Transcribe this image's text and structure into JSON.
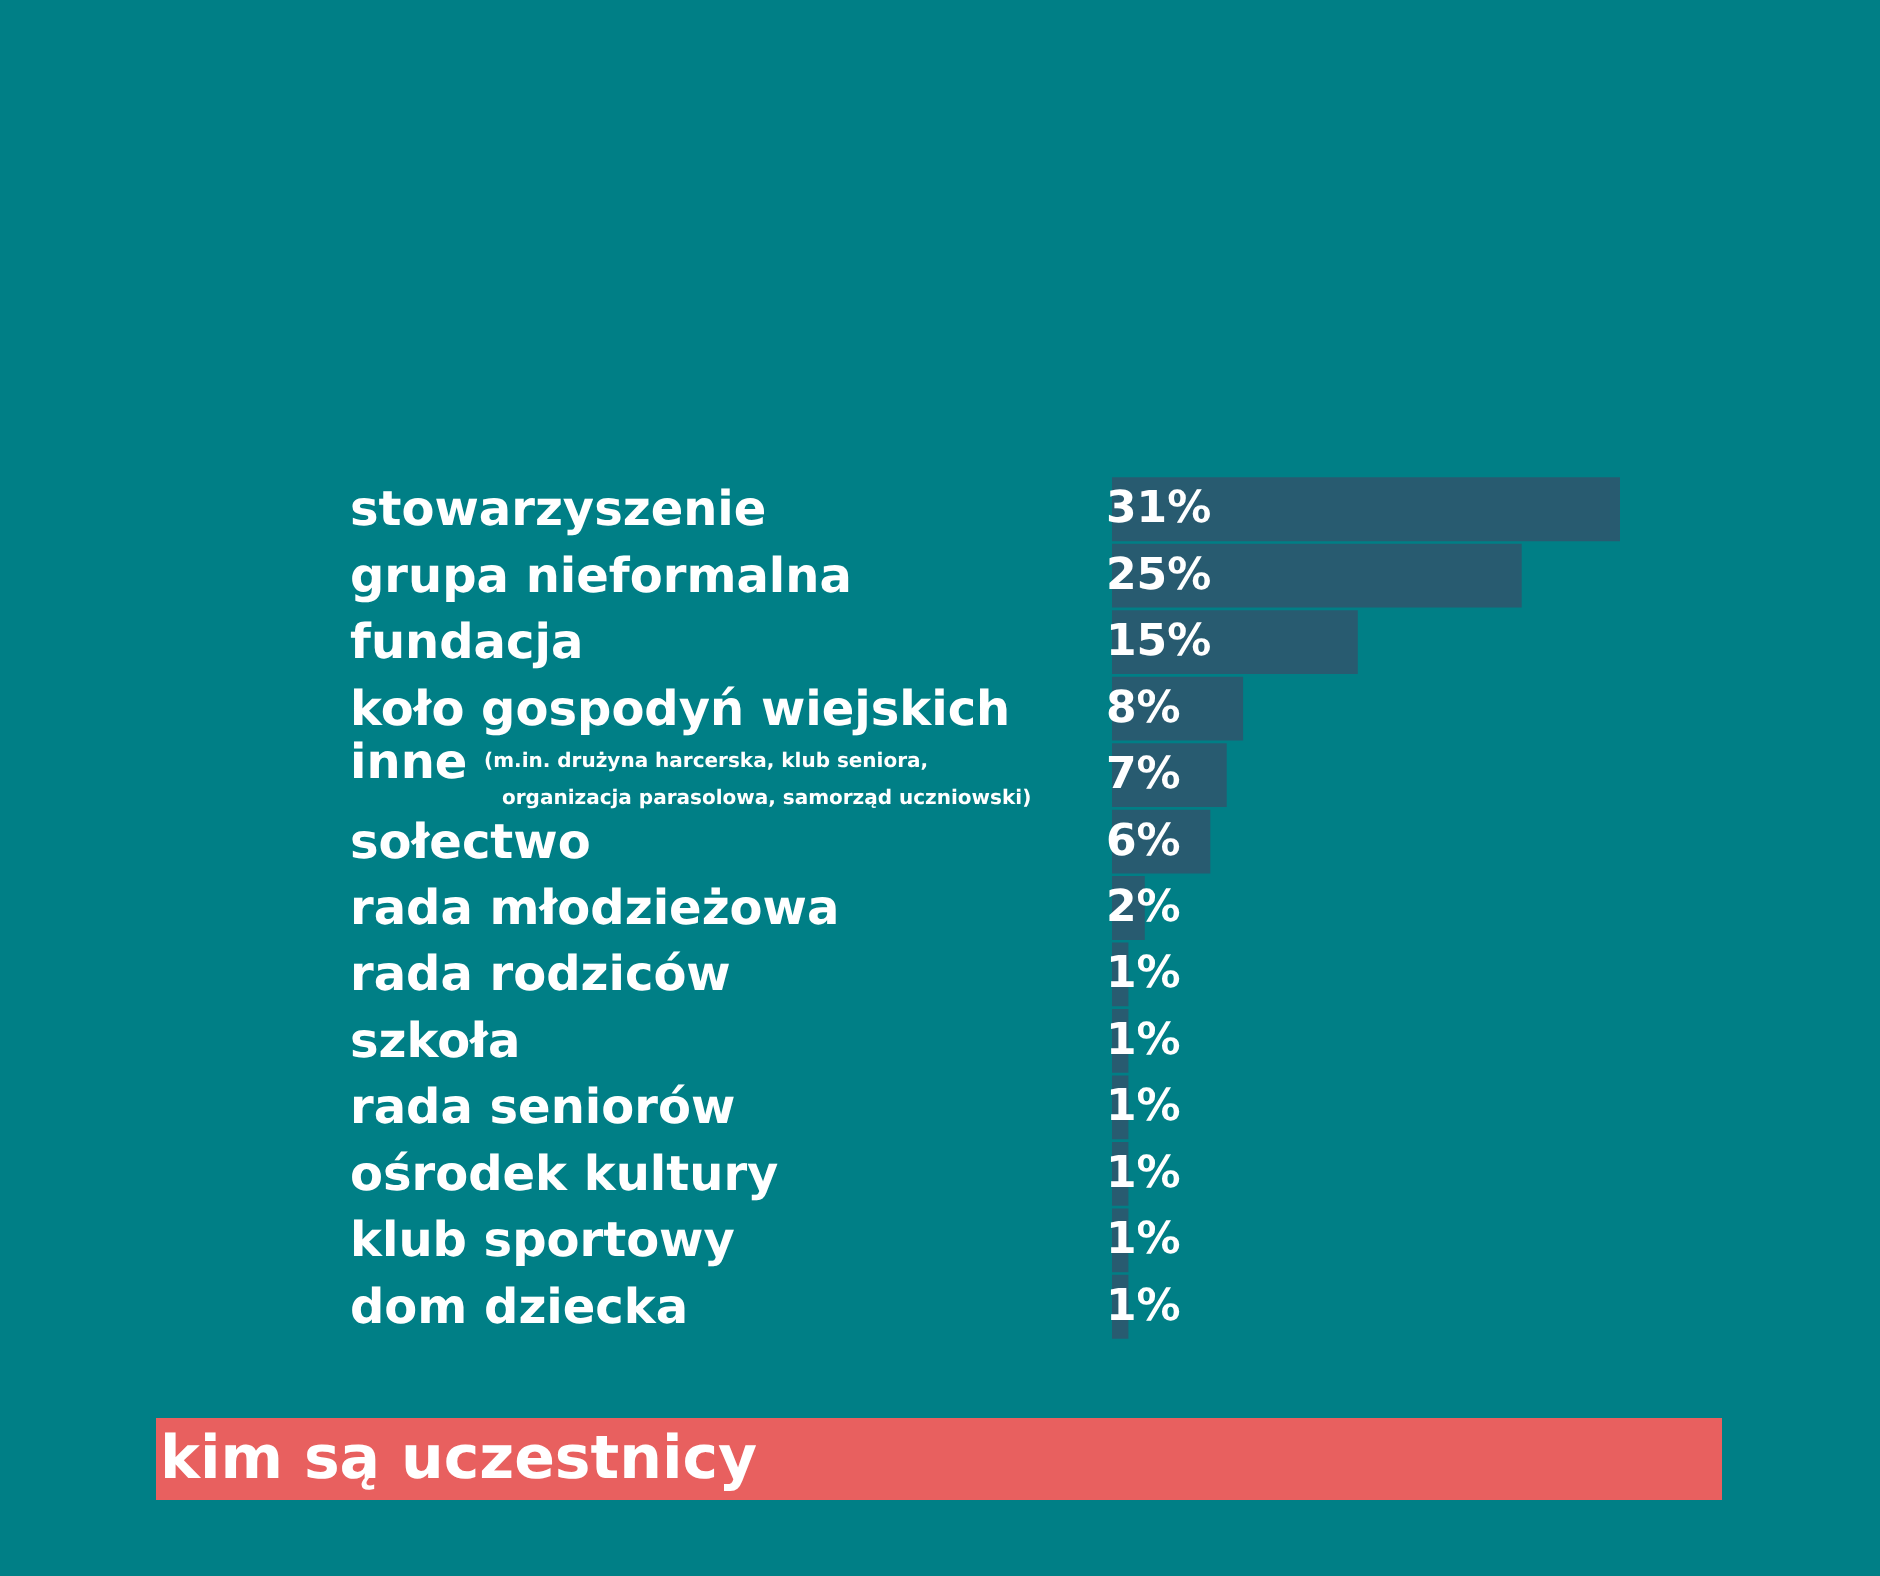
{
  "chart_data": {
    "type": "bar",
    "orientation": "horizontal",
    "title": "kim są uczestnicy",
    "categories": [
      "stowarzyszenie",
      "grupa nieformalna",
      "fundacja",
      "koło gospodyń wiejskich",
      "inne (m.in. drużyna harcerska, klub seniora, organizacja parasolowa, samorząd uczniowski)",
      "sołectwo",
      "rada młodzieżowa",
      "rada rodziców",
      "szkoła",
      "rada seniorów",
      "ośrodek kultury",
      "klub sportowy",
      "dom dziecka"
    ],
    "values": [
      31,
      25,
      15,
      8,
      7,
      6,
      2,
      1,
      1,
      1,
      1,
      1,
      1
    ],
    "value_labels": [
      "31%",
      "25%",
      "15%",
      "8%",
      "7%",
      "6%",
      "2%",
      "1%",
      "1%",
      "1%",
      "1%",
      "1%",
      "1%"
    ],
    "color": "#285b70"
  }
}
